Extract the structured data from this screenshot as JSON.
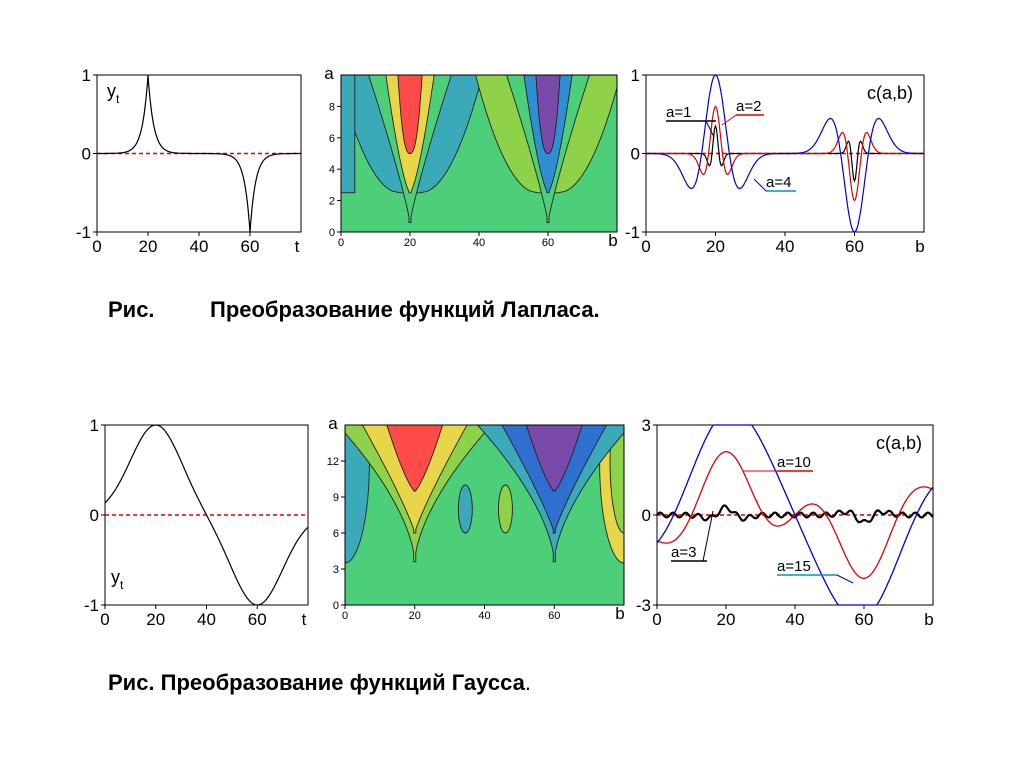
{
  "captions": {
    "laplace_prefix": "Рис.",
    "laplace_text": "Преобразование функций Лапласа.",
    "gauss_text": "Рис. Преобразование функций Гаусса",
    "gauss_period": "."
  },
  "chart_data": [
    {
      "id": "laplace-signal",
      "type": "line",
      "title": "",
      "series_label": "y",
      "series_label_sub": "t",
      "xlabel": "t",
      "xlim": [
        0,
        80
      ],
      "ylim": [
        -1,
        1
      ],
      "xticks": [
        0,
        20,
        40,
        60
      ],
      "yticks": [
        -1,
        0,
        1
      ],
      "x_tick_labels": [
        "0",
        "20",
        "40",
        "60"
      ],
      "y_tick_labels": [
        "-1",
        "0",
        "1"
      ],
      "zero_line": {
        "color": "#e00000",
        "style": "dashed"
      },
      "function": "laplace",
      "pulses": [
        {
          "center": 20,
          "amplitude": 1,
          "width": 2.2
        },
        {
          "center": 60,
          "amplitude": -1,
          "width": 2.2
        }
      ],
      "colors": {
        "line": "#000000"
      }
    },
    {
      "id": "laplace-contour",
      "type": "heatmap",
      "title": "",
      "xlabel": "b",
      "ylabel": "a",
      "xlim": [
        0,
        80
      ],
      "ylim": [
        0,
        10
      ],
      "xticks": [
        0,
        20,
        40,
        60
      ],
      "yticks": [
        0,
        2,
        4,
        6,
        8
      ],
      "x_tick_labels": [
        "0",
        "20",
        "40",
        "60"
      ],
      "y_tick_labels": [
        "0",
        "2",
        "4",
        "6",
        "8"
      ],
      "regions": [
        {
          "kind": "positive",
          "level": 1,
          "color": "#3aaab8"
        },
        {
          "kind": "positive",
          "level": 2,
          "color": "#e8d64a"
        },
        {
          "kind": "positive",
          "level": 3,
          "color": "#ff4a4a"
        },
        {
          "kind": "negative",
          "level": 1,
          "color": "#8ed24a"
        },
        {
          "kind": "negative",
          "level": 2,
          "color": "#2f8fd0"
        },
        {
          "kind": "negative",
          "level": 3,
          "color": "#7a4aaa"
        }
      ],
      "background_color": "#4dcf7a",
      "centers": [
        20,
        60
      ]
    },
    {
      "id": "laplace-coeffs",
      "type": "line",
      "title": "c(a,b)",
      "xlabel": "b",
      "xlim": [
        0,
        80
      ],
      "ylim": [
        -1,
        1
      ],
      "xticks": [
        0,
        20,
        40,
        60
      ],
      "yticks": [
        -1,
        0,
        1
      ],
      "x_tick_labels": [
        "0",
        "20",
        "40",
        "60"
      ],
      "y_tick_labels": [
        "-1",
        "0",
        "1"
      ],
      "zero_line": {
        "color": "#e00000",
        "style": "dashed"
      },
      "series": [
        {
          "name": "a=1",
          "color": "#000000",
          "scale": 1,
          "amplitude": 0.35
        },
        {
          "name": "a=2",
          "color": "#e00000",
          "scale": 2,
          "amplitude": 0.6
        },
        {
          "name": "a=4",
          "color": "#0000dd",
          "scale": 4,
          "amplitude": 1.0
        }
      ]
    },
    {
      "id": "gauss-signal",
      "type": "line",
      "title": "",
      "series_label": "y",
      "series_label_sub": "t",
      "xlabel": "t",
      "xlim": [
        0,
        80
      ],
      "ylim": [
        -1,
        1
      ],
      "xticks": [
        0,
        20,
        40,
        60
      ],
      "yticks": [
        -1,
        0,
        1
      ],
      "x_tick_labels": [
        "0",
        "20",
        "40",
        "60"
      ],
      "y_tick_labels": [
        "-1",
        "0",
        "1"
      ],
      "zero_line": {
        "color": "#e00000",
        "style": "dashed"
      },
      "function": "gauss",
      "pulses": [
        {
          "center": 20,
          "amplitude": 1,
          "width": 10
        },
        {
          "center": 60,
          "amplitude": -1,
          "width": 10
        }
      ],
      "colors": {
        "line": "#000000"
      }
    },
    {
      "id": "gauss-contour",
      "type": "heatmap",
      "title": "",
      "xlabel": "b",
      "ylabel": "a",
      "xlim": [
        0,
        80
      ],
      "ylim": [
        0,
        15
      ],
      "xticks": [
        0,
        20,
        40,
        60
      ],
      "yticks": [
        0,
        3,
        6,
        9,
        12
      ],
      "x_tick_labels": [
        "0",
        "20",
        "40",
        "60"
      ],
      "y_tick_labels": [
        "0",
        "3",
        "6",
        "9",
        "12"
      ],
      "regions": [
        {
          "kind": "positive",
          "level": 1,
          "color": "#8ed24a"
        },
        {
          "kind": "positive",
          "level": 2,
          "color": "#e8d64a"
        },
        {
          "kind": "positive",
          "level": 3,
          "color": "#ff4a4a"
        },
        {
          "kind": "negative",
          "level": 1,
          "color": "#3aaab8"
        },
        {
          "kind": "negative",
          "level": 2,
          "color": "#2f6fd0"
        },
        {
          "kind": "negative",
          "level": 3,
          "color": "#7a4aaa"
        }
      ],
      "background_color": "#4dcf7a",
      "centers": [
        20,
        60
      ]
    },
    {
      "id": "gauss-coeffs",
      "type": "line",
      "title": "c(a,b)",
      "xlabel": "b",
      "xlim": [
        0,
        80
      ],
      "ylim": [
        -3,
        3
      ],
      "xticks": [
        0,
        20,
        40,
        60
      ],
      "yticks": [
        -3,
        0,
        3
      ],
      "x_tick_labels": [
        "0",
        "20",
        "40",
        "60"
      ],
      "y_tick_labels": [
        "-3",
        "0",
        "3"
      ],
      "zero_line": {
        "color": "#e00000",
        "style": "dashed"
      },
      "series": [
        {
          "name": "a=3",
          "color": "#000000",
          "scale": 3,
          "amplitude": 0.25
        },
        {
          "name": "a=10",
          "color": "#e00000",
          "scale": 10,
          "amplitude": 2.1
        },
        {
          "name": "a=15",
          "color": "#0000dd",
          "scale": 15,
          "amplitude": 2.95
        }
      ]
    }
  ]
}
